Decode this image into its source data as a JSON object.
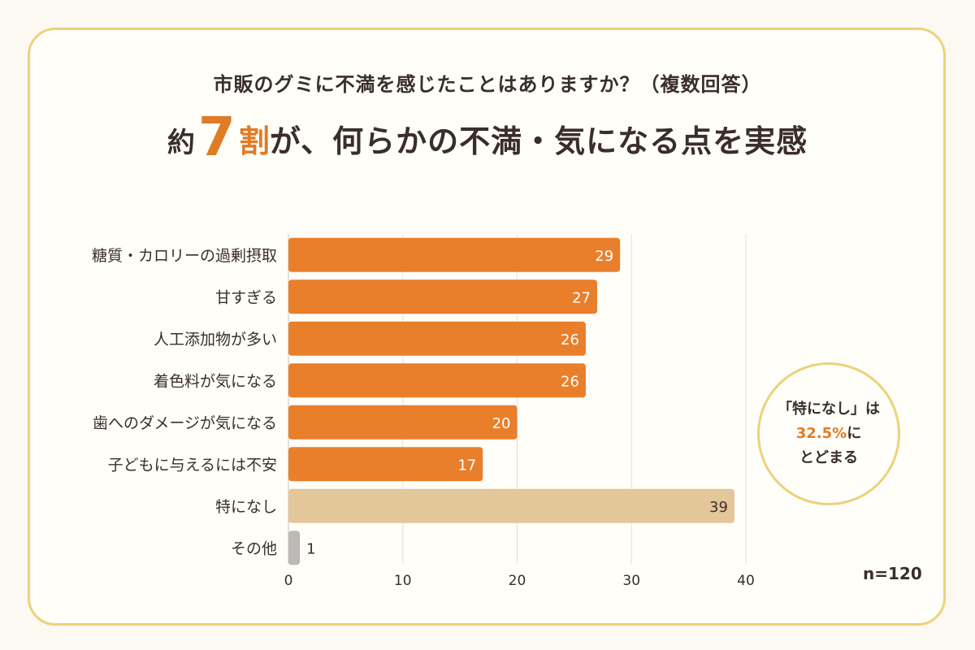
{
  "question": "市販のグミに不満を感じたことはありますか？（複数回答）",
  "headline": {
    "pre": "約",
    "number": "7",
    "unit": "割",
    "rest": "が、何らかの不満・気になる点を実感"
  },
  "badge": {
    "line1": "「特になし」は",
    "highlight": "32.5%",
    "line2_suffix": "に",
    "line3": "とどまる"
  },
  "sample": "n=120",
  "colors": {
    "primary_bar": "#e97f2b",
    "none_bar": "#e3c69a",
    "other_bar": "#bdb9b6",
    "accent": "#e07b26",
    "border": "#ecd27a"
  },
  "chart_data": {
    "type": "bar",
    "orientation": "horizontal",
    "categories": [
      "糖質・カロリーの過剰摂取",
      "甘すぎる",
      "人工添加物が多い",
      "着色料が気になる",
      "歯へのダメージが気になる",
      "子どもに与えるには不安",
      "特になし",
      "その他"
    ],
    "values": [
      29,
      27,
      26,
      26,
      20,
      17,
      39,
      1
    ],
    "xlim": [
      0,
      40
    ],
    "xticks": [
      0,
      10,
      20,
      30,
      40
    ],
    "grid": true
  }
}
